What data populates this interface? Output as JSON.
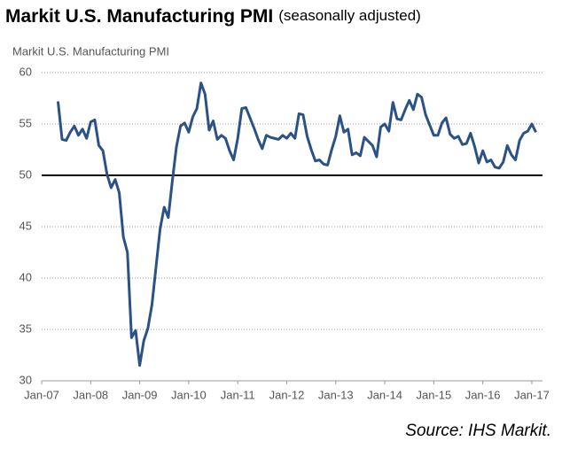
{
  "chart_data": {
    "type": "line",
    "title": "Markit U.S. Manufacturing PMI",
    "subtitle": "(seasonally adjusted)",
    "y_label": "Markit U.S. Manufacturing PMI",
    "source": "Source: IHS Markit.",
    "categories": [
      "Jan-07",
      null,
      null,
      null,
      null,
      null,
      null,
      null,
      null,
      null,
      null,
      null,
      "Jan-08",
      null,
      null,
      null,
      null,
      null,
      null,
      null,
      null,
      null,
      null,
      null,
      "Jan-09",
      null,
      null,
      null,
      null,
      null,
      null,
      null,
      null,
      null,
      null,
      null,
      "Jan-10",
      null,
      null,
      null,
      null,
      null,
      null,
      null,
      null,
      null,
      null,
      null,
      "Jan-11",
      null,
      null,
      null,
      null,
      null,
      null,
      null,
      null,
      null,
      null,
      null,
      "Jan-12",
      null,
      null,
      null,
      null,
      null,
      null,
      null,
      null,
      null,
      null,
      null,
      "Jan-13",
      null,
      null,
      null,
      null,
      null,
      null,
      null,
      null,
      null,
      null,
      null,
      "Jan-14",
      null,
      null,
      null,
      null,
      null,
      null,
      null,
      null,
      null,
      null,
      null,
      "Jan-15",
      null,
      null,
      null,
      null,
      null,
      null,
      null,
      null,
      null,
      null,
      null,
      "Jan-16",
      null,
      null,
      null,
      null,
      null,
      null,
      null,
      null,
      null,
      null,
      null,
      "Jan-17",
      null
    ],
    "series": [
      {
        "name": "Markit U.S. Manufacturing PMI",
        "color": "#2b5286",
        "values": [
          null,
          null,
          null,
          null,
          57.2,
          53.5,
          53.4,
          54.2,
          54.8,
          53.9,
          54.5,
          53.6,
          55.2,
          55.4,
          52.9,
          52.4,
          50.1,
          48.8,
          49.6,
          48.3,
          44.0,
          42.5,
          34.2,
          34.9,
          31.5,
          33.9,
          35.1,
          37.4,
          41.1,
          44.8,
          46.9,
          45.9,
          49.5,
          52.8,
          54.8,
          55.1,
          54.2,
          55.7,
          56.5,
          59.0,
          57.9,
          54.4,
          55.3,
          53.5,
          53.9,
          53.6,
          52.4,
          51.5,
          53.6,
          56.5,
          56.6,
          55.6,
          54.6,
          53.5,
          52.6,
          53.9,
          53.7,
          53.6,
          53.5,
          53.9,
          53.6,
          54.1,
          53.6,
          56.0,
          55.9,
          53.8,
          52.5,
          51.4,
          51.5,
          51.1,
          51.0,
          52.5,
          53.8,
          55.8,
          54.2,
          54.5,
          52.0,
          52.2,
          51.9,
          53.7,
          53.3,
          52.9,
          51.8,
          54.7,
          55.0,
          54.3,
          57.1,
          55.5,
          55.4,
          56.4,
          57.3,
          56.4,
          57.9,
          57.6,
          55.9,
          54.9,
          53.9,
          53.9,
          55.1,
          55.6,
          54.0,
          53.6,
          53.8,
          53.0,
          53.1,
          54.1,
          52.8,
          51.2,
          52.4,
          51.3,
          51.5,
          50.8,
          50.7,
          51.3,
          52.9,
          52.0,
          51.5,
          53.4,
          54.1,
          54.3,
          55.0,
          54.2
        ]
      }
    ],
    "reference_line": 50,
    "ylim": [
      30,
      60
    ],
    "yticks": [
      30,
      35,
      40,
      45,
      50,
      55,
      60
    ],
    "grid": true
  }
}
